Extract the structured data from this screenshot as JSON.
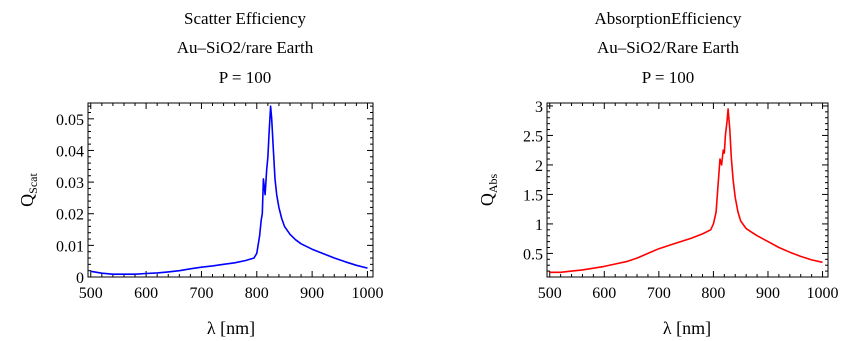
{
  "chart_data": [
    {
      "type": "line",
      "title_lines": [
        "Scatter Efficiency",
        "Au–SiO2/rare Earth",
        "P = 100"
      ],
      "xlabel": "λ [nm]",
      "ylabel_main": "Q",
      "ylabel_sub": "Scat",
      "xlim": [
        495,
        1010
      ],
      "ylim": [
        0,
        0.055
      ],
      "xticks": [
        500,
        600,
        700,
        800,
        900,
        1000
      ],
      "yticks": [
        0,
        0.01,
        0.02,
        0.03,
        0.04,
        0.05
      ],
      "xtick_labels": [
        "500",
        "600",
        "700",
        "800",
        "900",
        "1000"
      ],
      "ytick_labels": [
        "0",
        "0.01",
        "0.02",
        "0.03",
        "0.04",
        "0.05"
      ],
      "grid": false,
      "series": [
        {
          "color": "#0000ff",
          "x": [
            500,
            520,
            540,
            560,
            580,
            600,
            620,
            640,
            660,
            680,
            700,
            720,
            740,
            760,
            780,
            795,
            800,
            805,
            808,
            810,
            812,
            815,
            818,
            820,
            822,
            825,
            827,
            830,
            833,
            836,
            840,
            845,
            850,
            860,
            870,
            880,
            900,
            920,
            940,
            960,
            980,
            1000
          ],
          "y": [
            0.0018,
            0.0012,
            0.0009,
            0.0009,
            0.0009,
            0.0011,
            0.0013,
            0.0016,
            0.002,
            0.0026,
            0.0031,
            0.0035,
            0.004,
            0.0045,
            0.0052,
            0.006,
            0.0075,
            0.013,
            0.018,
            0.02,
            0.031,
            0.026,
            0.034,
            0.038,
            0.045,
            0.054,
            0.05,
            0.04,
            0.031,
            0.026,
            0.022,
            0.0185,
            0.016,
            0.0135,
            0.0118,
            0.0105,
            0.0088,
            0.0074,
            0.006,
            0.0048,
            0.0037,
            0.0028
          ]
        }
      ]
    },
    {
      "type": "line",
      "title_lines": [
        "AbsorptionEfficiency",
        "Au–SiO2/Rare Earth",
        "P = 100"
      ],
      "xlabel": "λ [nm]",
      "ylabel_main": "Q",
      "ylabel_sub": "Abs",
      "xlim": [
        495,
        1010
      ],
      "ylim": [
        0.1,
        3.05
      ],
      "xticks": [
        500,
        600,
        700,
        800,
        900,
        1000
      ],
      "yticks": [
        0.5,
        1,
        1.5,
        2,
        2.5,
        3
      ],
      "xtick_labels": [
        "500",
        "600",
        "700",
        "800",
        "900",
        "1000"
      ],
      "ytick_labels": [
        "0.5",
        "1",
        "1.5",
        "2",
        "2.5",
        "3"
      ],
      "grid": false,
      "series": [
        {
          "color": "#ff0000",
          "x": [
            500,
            520,
            540,
            560,
            580,
            600,
            620,
            640,
            660,
            680,
            700,
            720,
            740,
            760,
            780,
            795,
            800,
            805,
            808,
            812,
            815,
            818,
            820,
            822,
            825,
            827,
            830,
            833,
            836,
            840,
            845,
            850,
            860,
            870,
            880,
            900,
            920,
            940,
            960,
            980,
            1000
          ],
          "y": [
            0.18,
            0.18,
            0.2,
            0.22,
            0.25,
            0.28,
            0.32,
            0.36,
            0.42,
            0.5,
            0.58,
            0.64,
            0.7,
            0.76,
            0.83,
            0.9,
            1.0,
            1.2,
            1.6,
            2.1,
            2.0,
            2.25,
            2.2,
            2.5,
            2.75,
            2.95,
            2.6,
            2.1,
            1.75,
            1.45,
            1.2,
            1.05,
            0.92,
            0.86,
            0.8,
            0.7,
            0.6,
            0.52,
            0.45,
            0.39,
            0.35
          ]
        }
      ]
    }
  ]
}
